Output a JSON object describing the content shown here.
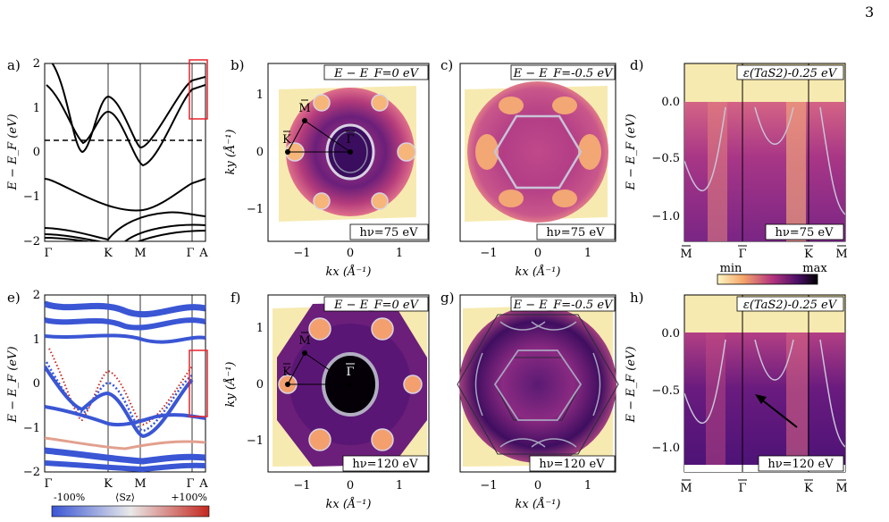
{
  "page_number": "3",
  "colors": {
    "band": "#000000",
    "ef_dashed": "#000000",
    "box_red": "#e8242c",
    "map_min": "#fcf7c4",
    "map_mid": "#b4337e",
    "map_max": "#000000",
    "spin_neg": "#3a56d4",
    "spin_pos": "#c4281f",
    "contour": "#c9c4d8"
  },
  "chart_data": [
    {
      "panel": "a)",
      "type": "line",
      "ylabel": "E − E_F (eV)",
      "ylim": [
        -2,
        2
      ],
      "ytick_labels": [
        "−2",
        "−1",
        "0",
        "1",
        "2"
      ],
      "xtick_labels": [
        "Γ",
        "K",
        "M",
        "Γ",
        "A"
      ],
      "ef_line": 0.25
    },
    {
      "panel": "b)",
      "type": "heatmap",
      "annotation": "E − E_F=0 eV",
      "photon": "hν=75 eV",
      "xlabel": "kx (Å⁻¹)",
      "ylabel": "ky (Å⁻¹)",
      "xtick_labels": [
        "−1",
        "0",
        "1"
      ],
      "ytick_labels": [
        "−1",
        "0",
        "1"
      ],
      "points": [
        "M",
        "K",
        "Γ"
      ]
    },
    {
      "panel": "c)",
      "type": "heatmap",
      "annotation": "E − E_F=-0.5 eV",
      "photon": "hν=75 eV",
      "xlabel": "kx (Å⁻¹)",
      "xtick_labels": [
        "−1",
        "0",
        "1"
      ]
    },
    {
      "panel": "d)",
      "type": "heatmap",
      "annotation": "ε(TaS2)-0.25 eV",
      "photon": "hν=75 eV",
      "ylabel": "E − E_F (eV)",
      "ytick_labels": [
        "0.0",
        "−0.5",
        "−1.0"
      ],
      "xtick_labels": [
        "M",
        "Γ",
        "K",
        "M"
      ]
    },
    {
      "panel": "e)",
      "type": "scatter",
      "ylabel": "E − E_F (eV)",
      "ylim": [
        -2,
        2
      ],
      "ytick_labels": [
        "−2",
        "−1",
        "0",
        "1",
        "2"
      ],
      "xtick_labels": [
        "Γ",
        "K",
        "M",
        "Γ",
        "A"
      ],
      "colorbar": {
        "min_label": "-100%",
        "mid_label": "⟨Sz⟩",
        "max_label": "+100%"
      }
    },
    {
      "panel": "f)",
      "type": "heatmap",
      "annotation": "E − E_F=0 eV",
      "photon": "hν=120 eV",
      "xlabel": "kx (Å⁻¹)",
      "ylabel": "ky (Å⁻¹)",
      "xtick_labels": [
        "−1",
        "0",
        "1"
      ],
      "ytick_labels": [
        "−1",
        "0",
        "1"
      ],
      "points": [
        "M",
        "K",
        "Γ"
      ]
    },
    {
      "panel": "g)",
      "type": "heatmap",
      "annotation": "E − E_F=-0.5 eV",
      "photon": "hν=120 eV",
      "xlabel": "kx (Å⁻¹)",
      "xtick_labels": [
        "−1",
        "0",
        "1"
      ]
    },
    {
      "panel": "h)",
      "type": "heatmap",
      "annotation": "ε(TaS2)-0.25 eV",
      "photon": "hν=120 eV",
      "ylabel": "E − E_F (eV)",
      "ytick_labels": [
        "0.0",
        "−0.5",
        "−1.0"
      ],
      "xtick_labels": [
        "M",
        "Γ",
        "K",
        "M"
      ]
    }
  ],
  "intensity_colorbar": {
    "min_label": "min",
    "max_label": "max"
  }
}
